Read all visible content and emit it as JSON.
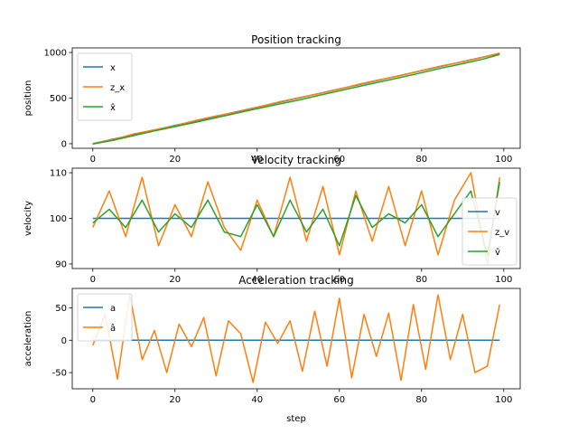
{
  "figure": {
    "xlabel": "step"
  },
  "chart_data": [
    {
      "type": "line",
      "title": "Position tracking",
      "xlabel": "",
      "ylabel": "position",
      "xlim": [
        -5,
        104
      ],
      "ylim": [
        -50,
        1050
      ],
      "xticks": [
        0,
        20,
        40,
        60,
        80,
        100
      ],
      "yticks": [
        0,
        500,
        1000
      ],
      "legend_position": "top-left",
      "x": [
        0,
        5,
        10,
        15,
        20,
        25,
        30,
        35,
        40,
        45,
        50,
        55,
        60,
        65,
        70,
        75,
        80,
        85,
        90,
        95,
        99
      ],
      "series": [
        {
          "name": "x",
          "color": "#1f77b4",
          "values": [
            0,
            50,
            100,
            150,
            200,
            250,
            300,
            350,
            400,
            450,
            500,
            550,
            600,
            650,
            700,
            750,
            800,
            850,
            900,
            950,
            990
          ]
        },
        {
          "name": "z_x",
          "color": "#ff7f0e",
          "values": [
            2,
            45,
            108,
            152,
            196,
            255,
            305,
            345,
            398,
            455,
            503,
            548,
            598,
            655,
            703,
            748,
            802,
            855,
            898,
            948,
            995
          ]
        },
        {
          "name": "x̂",
          "color": "#2ca02c",
          "values": [
            -3,
            38,
            90,
            140,
            188,
            235,
            285,
            335,
            385,
            432,
            478,
            530,
            580,
            630,
            680,
            728,
            778,
            830,
            878,
            928,
            978
          ]
        }
      ]
    },
    {
      "type": "line",
      "title": "Velocity tracking",
      "xlabel": "",
      "ylabel": "velocity",
      "xlim": [
        -5,
        104
      ],
      "ylim": [
        89,
        111
      ],
      "xticks": [
        0,
        20,
        40,
        60,
        80,
        100
      ],
      "yticks": [
        90,
        100,
        110
      ],
      "legend_position": "bottom-right",
      "x": [
        0,
        4,
        8,
        12,
        16,
        20,
        24,
        28,
        32,
        36,
        40,
        44,
        48,
        52,
        56,
        60,
        64,
        68,
        72,
        76,
        80,
        84,
        88,
        92,
        96,
        99
      ],
      "series": [
        {
          "name": "v",
          "color": "#1f77b4",
          "values": [
            100,
            100,
            100,
            100,
            100,
            100,
            100,
            100,
            100,
            100,
            100,
            100,
            100,
            100,
            100,
            100,
            100,
            100,
            100,
            100,
            100,
            100,
            100,
            100,
            100,
            100
          ]
        },
        {
          "name": "z_v",
          "color": "#ff7f0e",
          "values": [
            98,
            106,
            96,
            109,
            94,
            103,
            96,
            108,
            98,
            93,
            104,
            96,
            109,
            95,
            107,
            92,
            106,
            95,
            107,
            94,
            106,
            92,
            104,
            110,
            90,
            109
          ]
        },
        {
          "name": "v̂",
          "color": "#2ca02c",
          "values": [
            99,
            102,
            98,
            104,
            97,
            101,
            98,
            104,
            97,
            96,
            103,
            96,
            104,
            97,
            102,
            94,
            105,
            98,
            101,
            99,
            103,
            96,
            101,
            106,
            92,
            108
          ]
        }
      ]
    },
    {
      "type": "line",
      "title": "Acceleration tracking",
      "xlabel": "step",
      "ylabel": "acceleration",
      "xlim": [
        -5,
        104
      ],
      "ylim": [
        -75,
        80
      ],
      "xticks": [
        0,
        20,
        40,
        60,
        80,
        100
      ],
      "yticks": [
        -50,
        0,
        50
      ],
      "legend_position": "top-left",
      "x": [
        0,
        3,
        6,
        9,
        12,
        15,
        18,
        21,
        24,
        27,
        30,
        33,
        36,
        39,
        42,
        45,
        48,
        51,
        54,
        57,
        60,
        63,
        66,
        69,
        72,
        75,
        78,
        81,
        84,
        87,
        90,
        93,
        96,
        99
      ],
      "series": [
        {
          "name": "a",
          "color": "#1f77b4",
          "values": [
            0,
            0,
            0,
            0,
            0,
            0,
            0,
            0,
            0,
            0,
            0,
            0,
            0,
            0,
            0,
            0,
            0,
            0,
            0,
            0,
            0,
            0,
            0,
            0,
            0,
            0,
            0,
            0,
            0,
            0,
            0,
            0,
            0,
            0
          ]
        },
        {
          "name": "â",
          "color": "#ff7f0e",
          "values": [
            -8,
            40,
            -60,
            70,
            -30,
            15,
            -50,
            25,
            -10,
            35,
            -55,
            30,
            10,
            -65,
            28,
            -5,
            30,
            -48,
            45,
            -40,
            65,
            -58,
            40,
            -25,
            42,
            -62,
            55,
            -45,
            70,
            -30,
            40,
            -50,
            -40,
            55
          ]
        }
      ]
    }
  ]
}
